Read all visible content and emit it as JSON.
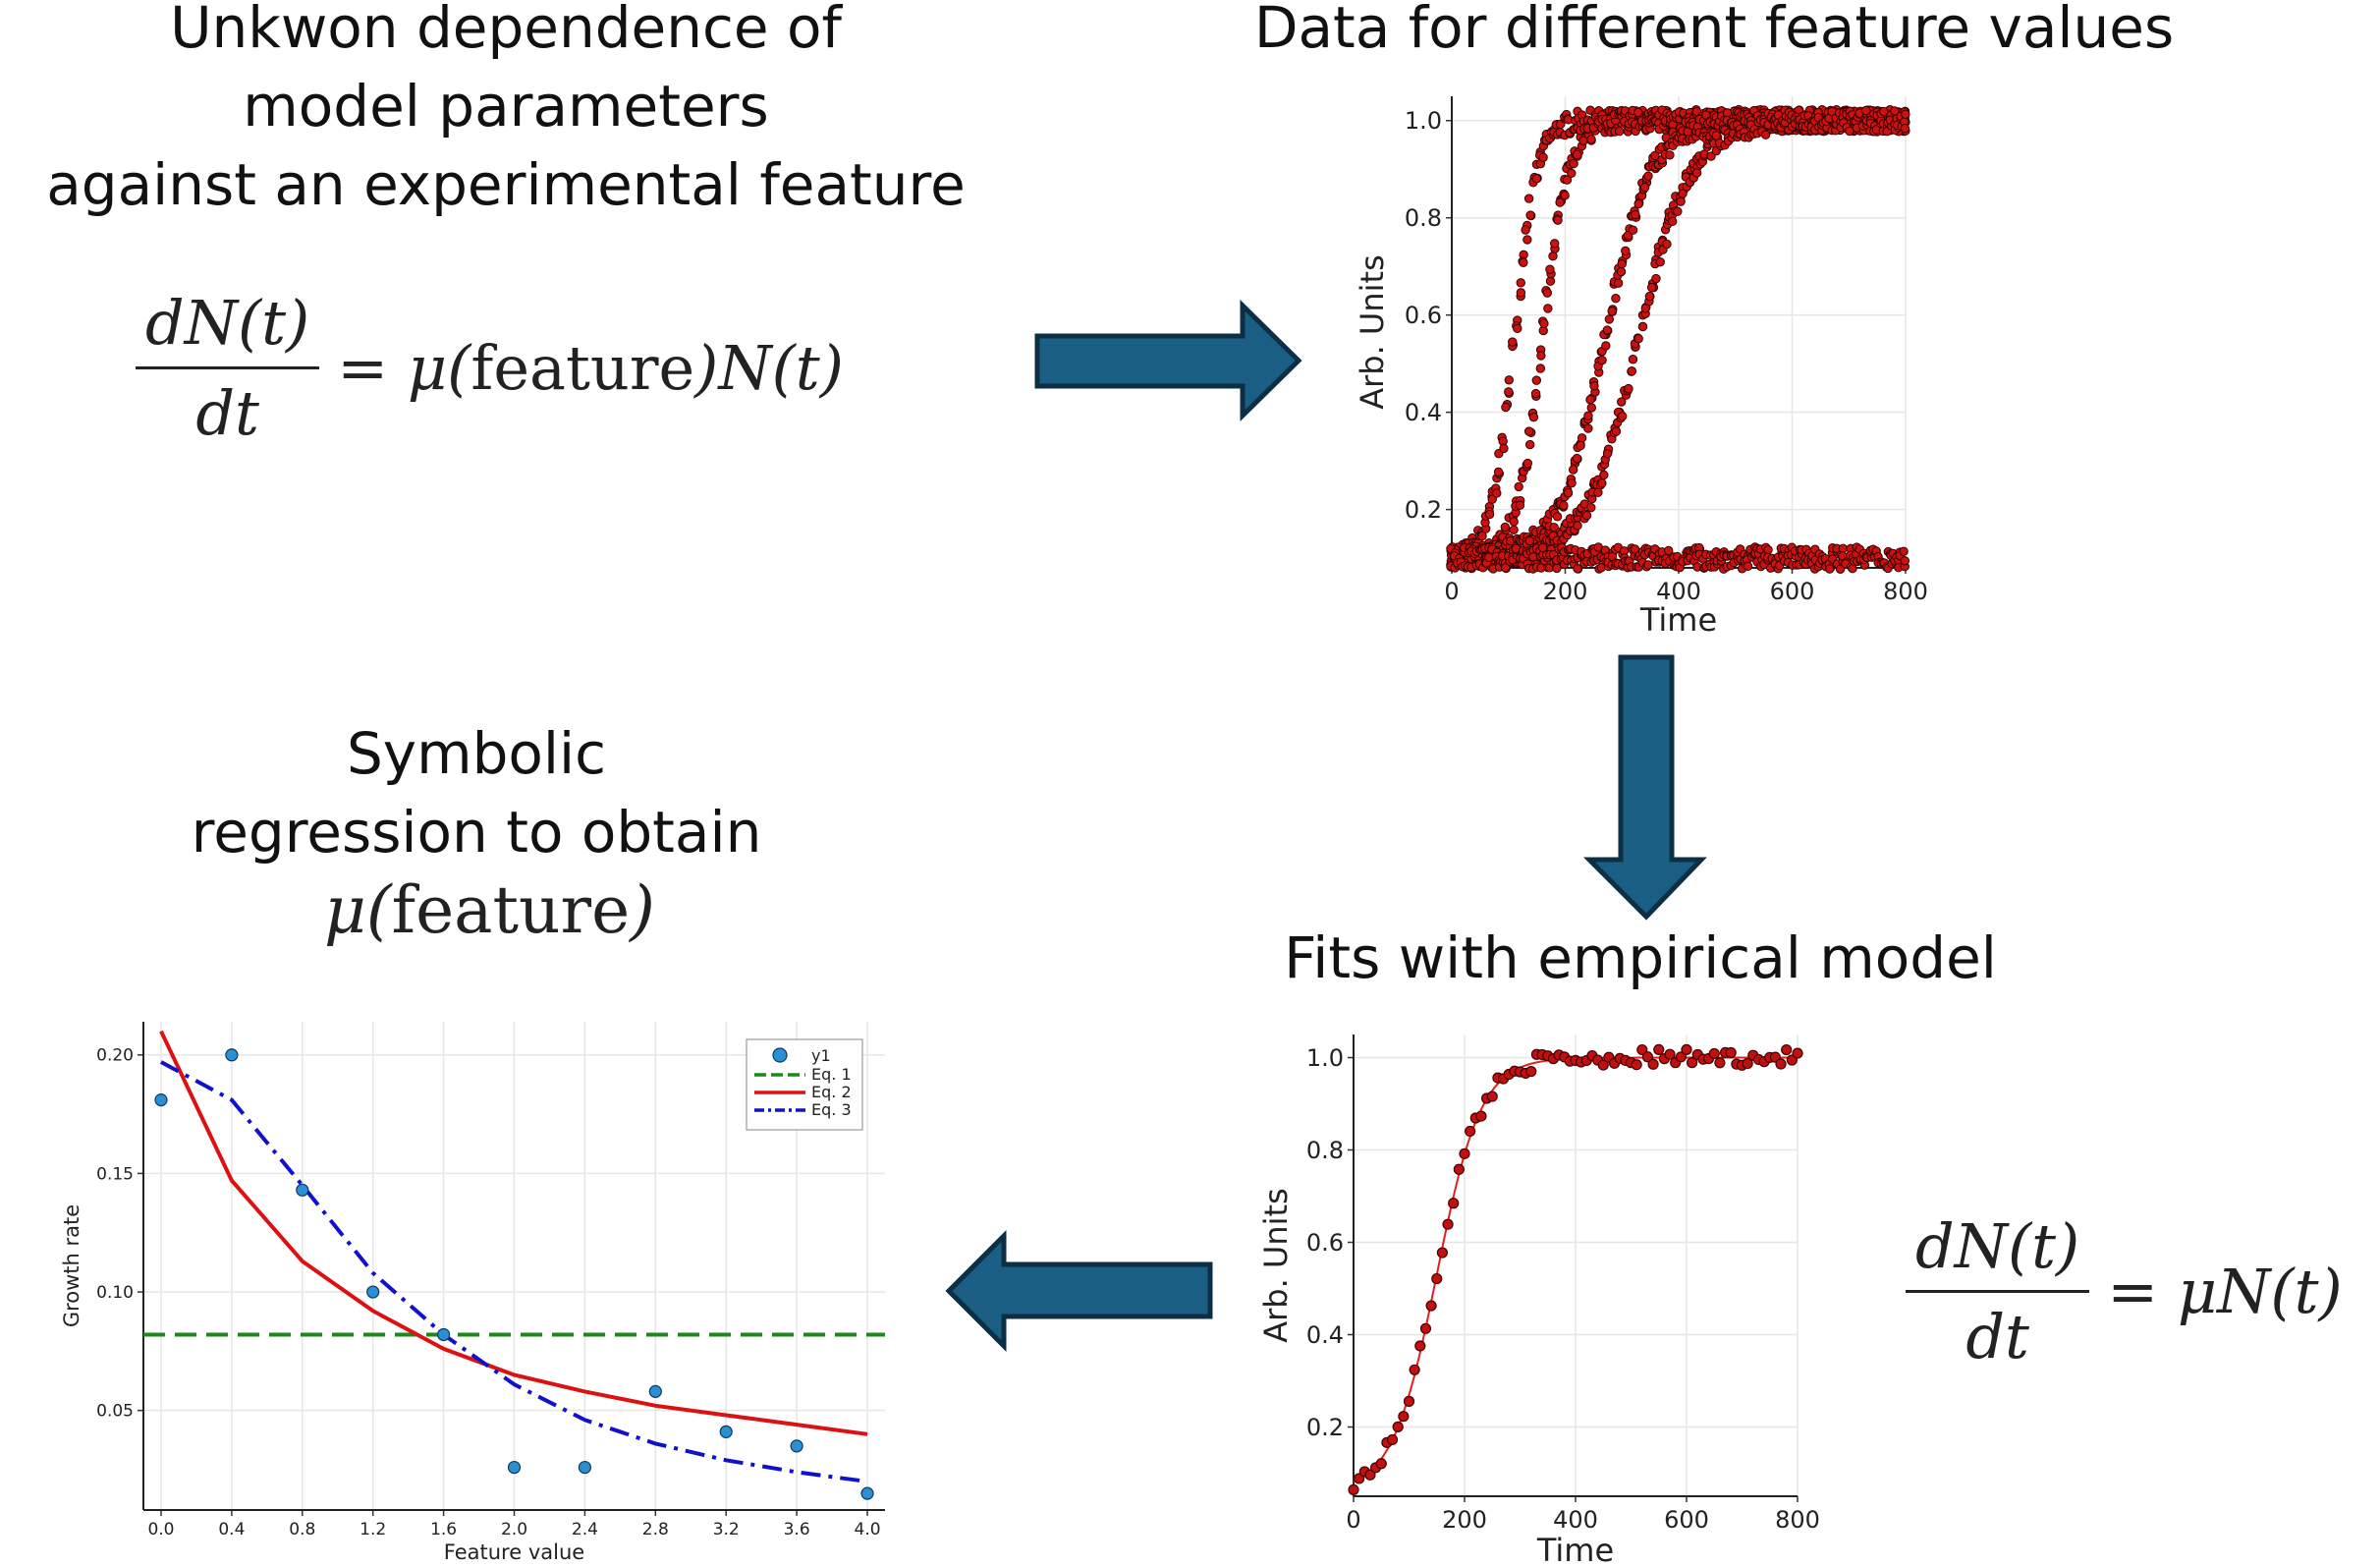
{
  "panels": {
    "top_left": {
      "title_lines": [
        "Unkwon dependence of",
        "model parameters",
        "against an experimental feature"
      ],
      "equation": {
        "numerator": "dN(t)",
        "denominator": "dt",
        "rhs_prefix": "= μ(",
        "rhs_word": "feature",
        "rhs_suffix": ")N(t)"
      }
    },
    "top_right": {
      "title": "Data for different feature values"
    },
    "bottom_right": {
      "title": "Fits with empirical model",
      "equation": {
        "numerator": "dN(t)",
        "denominator": "dt",
        "rhs": "= μN(t)"
      }
    },
    "bottom_left": {
      "title_lines": [
        "Symbolic",
        "regression to obtain"
      ],
      "mu_prefix": "μ(",
      "mu_word": "feature",
      "mu_suffix": ")"
    }
  },
  "arrows": [
    "right-arrow",
    "down-arrow",
    "left-arrow"
  ],
  "colors": {
    "arrow_fill": "#1b5e84",
    "arrow_stroke": "#0d2f45",
    "data_red": "#cc1111",
    "eq1_green": "#1a8a1a",
    "eq2_red": "#dd1111",
    "eq3_blue": "#1111cc",
    "point_blue": "#2b8fd4"
  },
  "chart_data": [
    {
      "id": "multi-growth",
      "type": "scatter",
      "xlabel": "Time",
      "ylabel": "Arb. Units",
      "xlim": [
        0,
        800
      ],
      "ylim": [
        0.08,
        1.05
      ],
      "xticks": [
        "0",
        "200",
        "400",
        "600",
        "800"
      ],
      "yticks": [
        "0.2",
        "0.4",
        "0.6",
        "0.8",
        "1.0"
      ],
      "grid": true,
      "series": [
        {
          "kind": "logistic",
          "midpoint": 110,
          "rate": 0.05,
          "base": 0.1,
          "top": 1.0
        },
        {
          "kind": "logistic",
          "midpoint": 160,
          "rate": 0.045,
          "base": 0.1,
          "top": 1.0
        },
        {
          "kind": "logistic",
          "midpoint": 270,
          "rate": 0.025,
          "base": 0.1,
          "top": 1.0
        },
        {
          "kind": "logistic",
          "midpoint": 330,
          "rate": 0.022,
          "base": 0.1,
          "top": 1.0
        },
        {
          "kind": "flat",
          "level": 0.1
        }
      ]
    },
    {
      "id": "single-fit",
      "type": "scatter",
      "xlabel": "Time",
      "ylabel": "Arb. Units",
      "xlim": [
        0,
        800
      ],
      "ylim": [
        0.05,
        1.05
      ],
      "xticks": [
        "0",
        "200",
        "400",
        "600",
        "800"
      ],
      "yticks": [
        "0.2",
        "0.4",
        "0.6",
        "0.8",
        "1.0"
      ],
      "grid": true,
      "fit": {
        "kind": "logistic",
        "midpoint": 150,
        "rate": 0.025,
        "base": 0.06,
        "top": 1.0
      }
    },
    {
      "id": "growth-rate",
      "type": "line",
      "xlabel": "Feature value",
      "ylabel": "Growth rate",
      "xlim": [
        -0.1,
        4.1
      ],
      "ylim": [
        0.008,
        0.214
      ],
      "xticks": [
        "0.0",
        "0.4",
        "0.8",
        "1.2",
        "1.6",
        "2.0",
        "2.4",
        "2.8",
        "3.2",
        "3.6",
        "4.0"
      ],
      "yticks": [
        "0.05",
        "0.10",
        "0.15",
        "0.20"
      ],
      "grid": true,
      "legend_position": "top-right",
      "points": {
        "name": "y1",
        "x": [
          0.0,
          0.4,
          0.8,
          1.2,
          1.6,
          2.0,
          2.4,
          2.8,
          3.2,
          3.6,
          4.0
        ],
        "y": [
          0.181,
          0.2,
          0.143,
          0.1,
          0.082,
          0.026,
          0.026,
          0.058,
          0.041,
          0.035,
          0.015
        ]
      },
      "series": [
        {
          "name": "Eq. 1",
          "style": "dashed",
          "x": [
            -0.1,
            4.1
          ],
          "y": [
            0.082,
            0.082
          ]
        },
        {
          "name": "Eq. 2",
          "style": "solid",
          "x": [
            0.0,
            0.4,
            0.8,
            1.2,
            1.6,
            2.0,
            2.4,
            2.8,
            3.2,
            3.6,
            4.0
          ],
          "y": [
            0.21,
            0.147,
            0.113,
            0.092,
            0.076,
            0.065,
            0.058,
            0.052,
            0.048,
            0.044,
            0.04
          ]
        },
        {
          "name": "Eq. 3",
          "style": "dashdot",
          "x": [
            0.0,
            0.4,
            0.8,
            1.2,
            1.6,
            2.0,
            2.4,
            2.8,
            3.2,
            3.6,
            4.0
          ],
          "y": [
            0.197,
            0.181,
            0.145,
            0.108,
            0.082,
            0.061,
            0.046,
            0.036,
            0.029,
            0.024,
            0.02
          ]
        }
      ]
    }
  ]
}
